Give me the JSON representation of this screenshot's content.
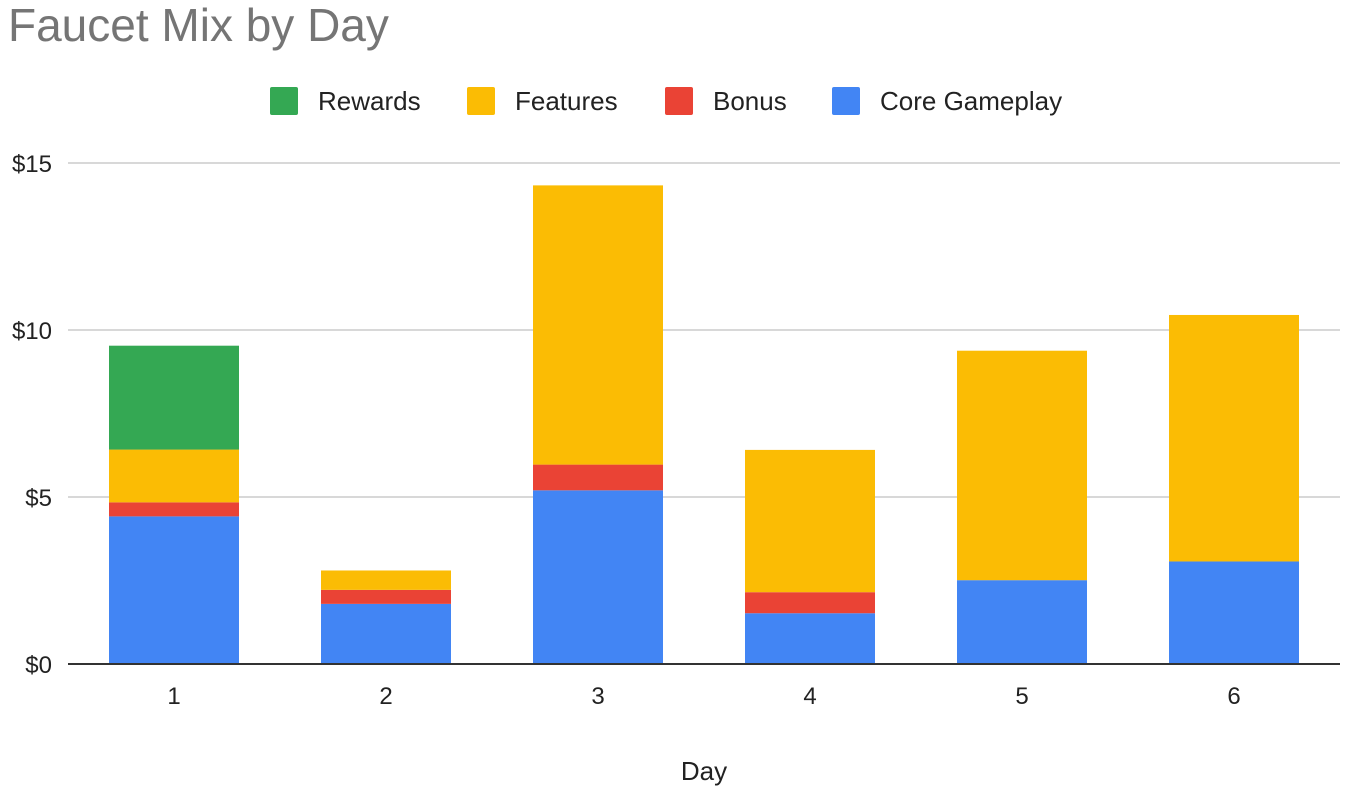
{
  "chart_data": {
    "type": "bar",
    "stacked": true,
    "title": "Faucet Mix by Day",
    "xlabel": "Day",
    "ylabel": "",
    "categories": [
      "1",
      "2",
      "3",
      "4",
      "5",
      "6"
    ],
    "ylim": [
      0,
      15
    ],
    "yticks": [
      0,
      5,
      10,
      15
    ],
    "ytick_labels": [
      "$0",
      "$5",
      "$10",
      "$15"
    ],
    "grid": true,
    "legend_position": "top-center",
    "series": [
      {
        "name": "Core Gameplay",
        "color": "#4285F4",
        "values": [
          4.42,
          1.8,
          5.2,
          1.52,
          2.51,
          3.07
        ]
      },
      {
        "name": "Bonus",
        "color": "#EA4335",
        "values": [
          0.42,
          0.42,
          0.77,
          0.63,
          0.0,
          0.0
        ]
      },
      {
        "name": "Features",
        "color": "#FBBC04",
        "values": [
          1.58,
          0.58,
          8.36,
          4.26,
          6.87,
          7.38
        ]
      },
      {
        "name": "Rewards",
        "color": "#34A853",
        "values": [
          3.11,
          0.0,
          0.0,
          0.0,
          0.0,
          0.0
        ]
      }
    ],
    "legend_order": [
      "Rewards",
      "Features",
      "Bonus",
      "Core Gameplay"
    ]
  }
}
